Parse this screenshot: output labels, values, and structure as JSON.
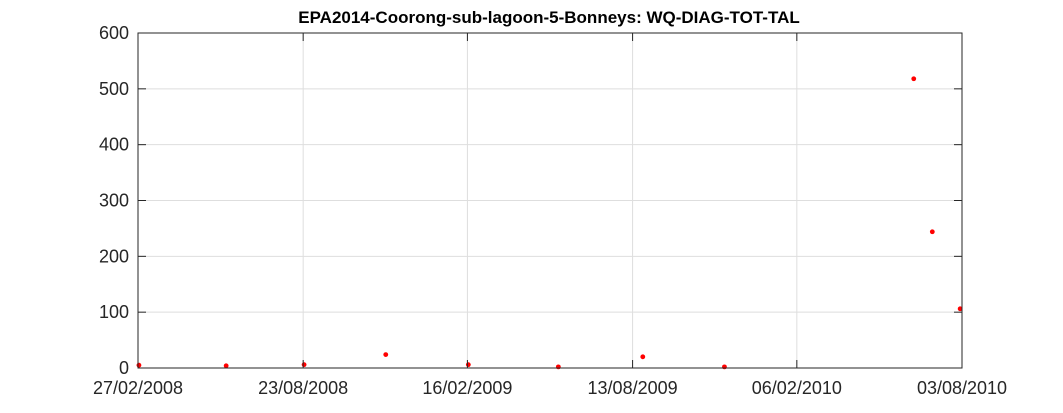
{
  "chart_data": {
    "type": "scatter",
    "title": "EPA2014-Coorong-sub-lagoon-5-Bonneys: WQ-DIAG-TOT-TAL",
    "xlabel": "",
    "ylabel": "",
    "x_scale": "date",
    "xlim": [
      "2008-02-27",
      "2010-08-03"
    ],
    "ylim": [
      0,
      600
    ],
    "x_ticks": [
      "2008-02-27",
      "2008-08-23",
      "2009-02-16",
      "2009-08-13",
      "2010-02-06",
      "2010-08-03"
    ],
    "x_tick_labels": [
      "27/02/2008",
      "23/08/2008",
      "16/02/2009",
      "13/08/2009",
      "06/02/2010",
      "03/08/2010"
    ],
    "y_ticks": [
      0,
      100,
      200,
      300,
      400,
      500,
      600
    ],
    "y_tick_labels": [
      "0",
      "100",
      "200",
      "300",
      "400",
      "500",
      "600"
    ],
    "grid": true,
    "marker_color": "#ff0000",
    "points": [
      {
        "x": "2008-02-28",
        "y": 5
      },
      {
        "x": "2008-06-01",
        "y": 4
      },
      {
        "x": "2008-08-24",
        "y": 6
      },
      {
        "x": "2008-11-20",
        "y": 24
      },
      {
        "x": "2009-02-17",
        "y": 6
      },
      {
        "x": "2009-05-25",
        "y": 2
      },
      {
        "x": "2009-08-24",
        "y": 20
      },
      {
        "x": "2009-11-20",
        "y": 2
      },
      {
        "x": "2010-06-12",
        "y": 518
      },
      {
        "x": "2010-07-02",
        "y": 244
      },
      {
        "x": "2010-08-01",
        "y": 106
      }
    ]
  }
}
